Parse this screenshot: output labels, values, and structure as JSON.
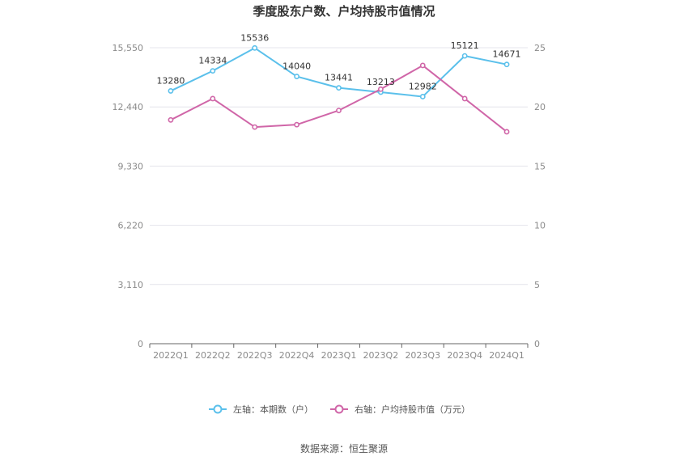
{
  "chart_data": {
    "type": "line",
    "title": "季度股东户数、户均持股市值情况",
    "categories": [
      "2022Q1",
      "2022Q2",
      "2022Q3",
      "2022Q4",
      "2023Q1",
      "2023Q2",
      "2023Q3",
      "2023Q4",
      "2024Q1"
    ],
    "left_axis": {
      "ticks": [
        "0",
        "3,110",
        "6,220",
        "9,330",
        "12,440",
        "15,550"
      ],
      "min": 0,
      "max": 15550
    },
    "right_axis": {
      "ticks": [
        "0",
        "5",
        "10",
        "15",
        "20",
        "25"
      ],
      "min": 0,
      "max": 25
    },
    "series": [
      {
        "name": "左轴：本期数（户）",
        "axis": "left",
        "color": "#5bc0eb",
        "values": [
          13280,
          14334,
          15536,
          14040,
          13441,
          13213,
          12982,
          15121,
          14671
        ],
        "labels": [
          "13280",
          "14334",
          "15536",
          "14040",
          "13441",
          "13213",
          "12982",
          "15121",
          "14671"
        ]
      },
      {
        "name": "右轴：户均持股市值（万元）",
        "axis": "right",
        "color": "#d066a8",
        "values": [
          18.9,
          20.7,
          18.3,
          18.5,
          19.7,
          21.5,
          23.5,
          20.7,
          17.9
        ]
      }
    ],
    "grid": true,
    "legend_position": "bottom"
  },
  "source": "数据来源：恒生聚源"
}
